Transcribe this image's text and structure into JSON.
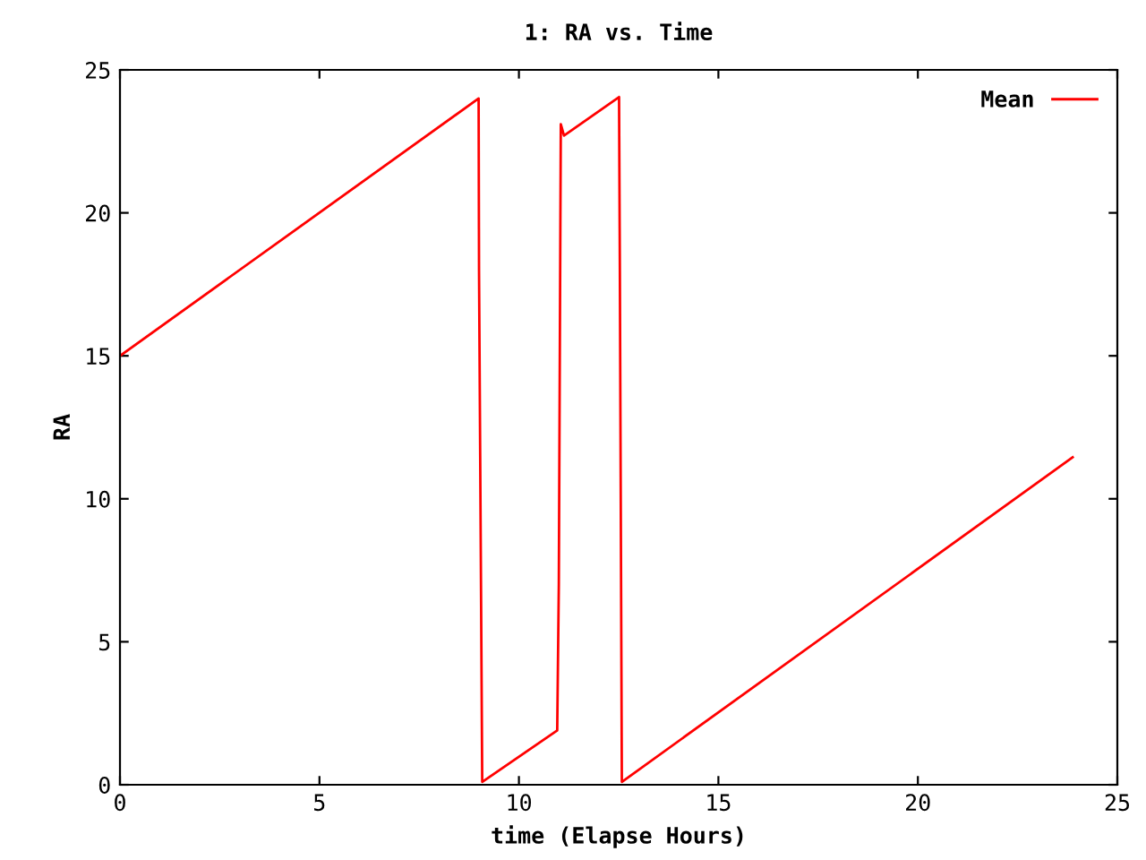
{
  "chart_data": {
    "type": "line",
    "title": "1: RA vs. Time",
    "xlabel": "time (Elapse Hours)",
    "ylabel": "RA",
    "x": [
      0,
      8.99,
      9.0,
      9.08,
      10.96,
      11.0,
      11.05,
      11.13,
      12.51,
      12.53,
      12.58,
      23.88
    ],
    "series": [
      {
        "name": "Mean",
        "color": "#ff0000",
        "values": [
          15.0,
          24.0,
          18.0,
          0.1,
          1.9,
          7.0,
          23.1,
          22.7,
          24.05,
          18.0,
          0.1,
          11.45
        ]
      }
    ],
    "xlim": [
      0,
      25
    ],
    "ylim": [
      0,
      25
    ],
    "xticks": [
      0,
      5,
      10,
      15,
      20,
      25
    ],
    "yticks": [
      0,
      5,
      10,
      15,
      20,
      25
    ],
    "grid": false,
    "legend": "top right",
    "marker": "none",
    "line_style": "solid"
  }
}
